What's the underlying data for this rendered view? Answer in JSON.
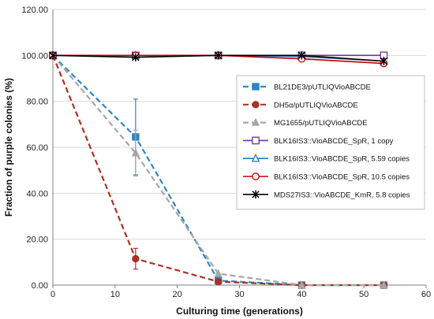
{
  "chart_data": {
    "type": "line",
    "title": "",
    "xlabel": "Culturing time (generations)",
    "ylabel": "Fraction of purple colonies (%)",
    "xlim": [
      0,
      60
    ],
    "ylim": [
      0,
      120
    ],
    "x_ticks": [
      0,
      10,
      20,
      30,
      40,
      50,
      60
    ],
    "y_ticks": [
      0,
      20,
      40,
      60,
      80,
      100,
      120
    ],
    "x_tick_labels": [
      "0",
      "10",
      "20",
      "30",
      "40",
      "50",
      "60"
    ],
    "y_tick_labels": [
      "0.00",
      "20.00",
      "40.00",
      "60.00",
      "80.00",
      "100.00",
      "120.00"
    ],
    "grid": "horizontal",
    "legend_position": "center-right",
    "series": [
      {
        "name": "BL21DE3/pUTLIQVioABCDE",
        "color": "#2E86C1",
        "dash": "dashed",
        "marker": "square",
        "x": [
          0,
          13.3,
          26.6,
          40,
          53.2
        ],
        "y": [
          100,
          64.5,
          2,
          0,
          0
        ],
        "err": [
          0,
          16.5,
          0,
          0,
          0
        ]
      },
      {
        "name": "DH5α/pUTLIQVioABCDE",
        "color": "#A93226",
        "dash": "dashed",
        "marker": "circle",
        "x": [
          0,
          13.3,
          26.6,
          40,
          53.2
        ],
        "y": [
          100,
          11.5,
          1.5,
          0,
          0
        ],
        "err": [
          0,
          4.5,
          0,
          0,
          0
        ]
      },
      {
        "name": "MG1655/pUTLIQVioABCDE",
        "color": "#A6A6A6",
        "dash": "dashed",
        "marker": "triangle",
        "x": [
          0,
          13.3,
          26.6,
          40,
          53.2
        ],
        "y": [
          100,
          57.5,
          5,
          0,
          0
        ],
        "err": [
          0,
          10,
          0,
          0,
          0
        ]
      },
      {
        "name": "BLK16IS3::VioABCDE_SpR, 1 copy",
        "color": "#7030A0",
        "dash": "solid",
        "marker": "open-square",
        "x": [
          0,
          13.3,
          26.6,
          40,
          53.2
        ],
        "y": [
          100,
          100,
          100,
          100,
          100
        ],
        "err": [
          0,
          0,
          0,
          0,
          0
        ]
      },
      {
        "name": "BLK16IS3::VioABCDE_SpR, 5.59 copies",
        "color": "#2E75B6",
        "dash": "solid",
        "marker": "open-triangle",
        "x": [
          0,
          13.3,
          26.6,
          40,
          53.2
        ],
        "y": [
          100,
          100,
          100,
          99.5,
          97.5
        ],
        "err": [
          0,
          0,
          0,
          0,
          0
        ]
      },
      {
        "name": "BLK16IS3::VioABCDE_SpR, 10.5 copies",
        "color": "#C00000",
        "dash": "solid",
        "marker": "open-circle",
        "x": [
          0,
          13.3,
          26.6,
          40,
          53.2
        ],
        "y": [
          100,
          100,
          100,
          98.5,
          96.5
        ],
        "err": [
          0,
          0,
          0,
          0,
          0
        ]
      },
      {
        "name": "MDS27IS3::VioABCDE_KmR, 5.8 copies",
        "color": "#000000",
        "dash": "solid",
        "marker": "star",
        "x": [
          0,
          13.3,
          26.6,
          40,
          53.2
        ],
        "y": [
          100,
          99.2,
          100,
          100,
          97.5
        ],
        "err": [
          0,
          0,
          0,
          0,
          0
        ]
      }
    ]
  }
}
